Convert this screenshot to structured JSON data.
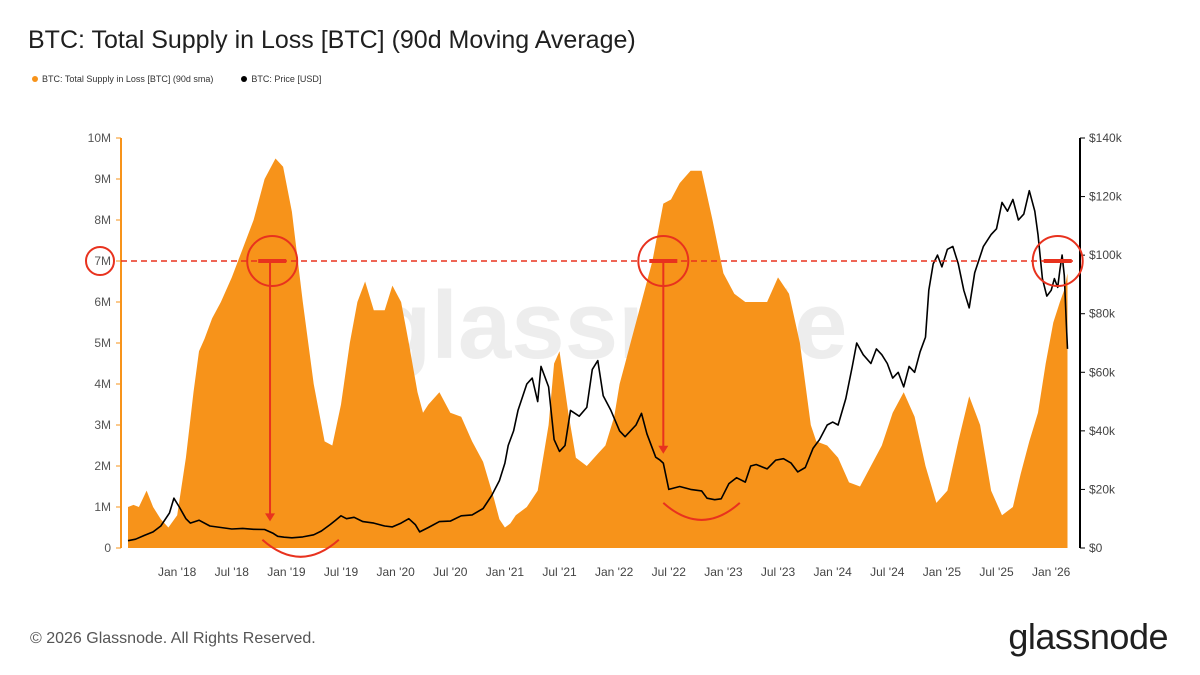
{
  "header": {
    "title": "BTC: Total Supply in Loss [BTC] (90d Moving Average)"
  },
  "footer": {
    "copyright": "© 2026 Glassnode. All Rights Reserved.",
    "brand": "glassnode"
  },
  "colors": {
    "supply": "#F7931A",
    "price": "#000000",
    "annotation": "#E8321E"
  },
  "chart_data": {
    "type": "area",
    "title": "BTC: Total Supply in Loss [BTC] (90d Moving Average)",
    "watermark": "glassnode",
    "x_range": [
      2017.55,
      2026.2
    ],
    "y_left": {
      "min": 0,
      "max": 10000000,
      "ticks": [
        0,
        1000000,
        2000000,
        3000000,
        4000000,
        5000000,
        6000000,
        7000000,
        8000000,
        9000000,
        10000000
      ],
      "tick_labels": [
        "0",
        "1M",
        "2M",
        "3M",
        "4M",
        "5M",
        "6M",
        "7M",
        "8M",
        "9M",
        "10M"
      ]
    },
    "y_right": {
      "min": 0,
      "max": 140000,
      "ticks": [
        0,
        20000,
        40000,
        60000,
        80000,
        100000,
        120000,
        140000
      ],
      "tick_labels": [
        "$0",
        "$20k",
        "$40k",
        "$60k",
        "$80k",
        "$100k",
        "$120k",
        "$140k"
      ]
    },
    "x_ticks": [
      2018.0,
      2018.5,
      2019.0,
      2019.5,
      2020.0,
      2020.5,
      2021.0,
      2021.5,
      2022.0,
      2022.5,
      2023.0,
      2023.5,
      2024.0,
      2024.5,
      2025.0,
      2025.5,
      2026.0
    ],
    "x_tick_labels": [
      "Jan '18",
      "Jul '18",
      "Jan '19",
      "Jul '19",
      "Jan '20",
      "Jul '20",
      "Jan '21",
      "Jul '21",
      "Jan '22",
      "Jul '22",
      "Jan '23",
      "Jul '23",
      "Jan '24",
      "Jul '24",
      "Jan '25",
      "Jul '25",
      "Jan '26"
    ],
    "series": [
      {
        "name": "BTC: Total Supply in Loss [BTC] (90d sma)",
        "axis": "left",
        "style": "area",
        "x": [
          2017.55,
          2017.6,
          2017.65,
          2017.72,
          2017.78,
          2017.85,
          2017.92,
          2018.0,
          2018.08,
          2018.15,
          2018.2,
          2018.25,
          2018.32,
          2018.4,
          2018.5,
          2018.6,
          2018.7,
          2018.8,
          2018.9,
          2018.97,
          2019.05,
          2019.15,
          2019.25,
          2019.35,
          2019.42,
          2019.5,
          2019.58,
          2019.65,
          2019.72,
          2019.8,
          2019.9,
          2019.97,
          2020.05,
          2020.12,
          2020.2,
          2020.25,
          2020.3,
          2020.4,
          2020.5,
          2020.6,
          2020.7,
          2020.8,
          2020.9,
          2020.95,
          2021.0,
          2021.05,
          2021.1,
          2021.2,
          2021.3,
          2021.4,
          2021.45,
          2021.5,
          2021.58,
          2021.65,
          2021.75,
          2021.85,
          2021.92,
          2022.0,
          2022.05,
          2022.1,
          2022.15,
          2022.25,
          2022.35,
          2022.45,
          2022.52,
          2022.6,
          2022.7,
          2022.8,
          2022.9,
          2023.0,
          2023.1,
          2023.2,
          2023.3,
          2023.4,
          2023.5,
          2023.6,
          2023.7,
          2023.8,
          2023.85,
          2023.95,
          2024.05,
          2024.15,
          2024.25,
          2024.35,
          2024.45,
          2024.55,
          2024.65,
          2024.75,
          2024.85,
          2024.95,
          2025.05,
          2025.15,
          2025.25,
          2025.35,
          2025.45,
          2025.55,
          2025.65,
          2025.72,
          2025.8,
          2025.88,
          2025.95,
          2026.02,
          2026.08,
          2026.12,
          2026.15
        ],
        "values": [
          1000000,
          1050000,
          1000000,
          1400000,
          1000000,
          700000,
          500000,
          800000,
          2200000,
          3800000,
          4800000,
          5100000,
          5600000,
          6000000,
          6600000,
          7300000,
          8000000,
          9000000,
          9500000,
          9300000,
          8200000,
          6000000,
          4000000,
          2600000,
          2500000,
          3500000,
          5000000,
          6000000,
          6500000,
          5800000,
          5800000,
          6400000,
          6000000,
          5000000,
          3800000,
          3300000,
          3500000,
          3800000,
          3300000,
          3200000,
          2600000,
          2100000,
          1200000,
          700000,
          500000,
          600000,
          800000,
          1000000,
          1400000,
          3000000,
          4500000,
          4800000,
          3300000,
          2200000,
          2000000,
          2300000,
          2500000,
          3200000,
          4000000,
          4500000,
          5000000,
          6000000,
          7000000,
          8400000,
          8500000,
          8900000,
          9200000,
          9200000,
          8000000,
          6700000,
          6200000,
          6000000,
          6000000,
          6000000,
          6600000,
          6200000,
          5000000,
          3000000,
          2600000,
          2500000,
          2200000,
          1600000,
          1500000,
          2000000,
          2500000,
          3300000,
          3800000,
          3200000,
          2000000,
          1100000,
          1400000,
          2600000,
          3700000,
          3000000,
          1400000,
          800000,
          1000000,
          1800000,
          2600000,
          3300000,
          4500000,
          5500000,
          6000000,
          6300000,
          6700000
        ]
      },
      {
        "name": "BTC: Price [USD]",
        "axis": "right",
        "style": "line",
        "x": [
          2017.55,
          2017.62,
          2017.7,
          2017.78,
          2017.85,
          2017.93,
          2017.97,
          2018.02,
          2018.08,
          2018.12,
          2018.2,
          2018.3,
          2018.4,
          2018.5,
          2018.6,
          2018.7,
          2018.8,
          2018.88,
          2018.92,
          2018.98,
          2019.05,
          2019.15,
          2019.25,
          2019.32,
          2019.4,
          2019.45,
          2019.5,
          2019.55,
          2019.62,
          2019.7,
          2019.8,
          2019.9,
          2019.97,
          2020.05,
          2020.12,
          2020.18,
          2020.22,
          2020.3,
          2020.4,
          2020.5,
          2020.6,
          2020.7,
          2020.8,
          2020.88,
          2020.95,
          2021.0,
          2021.03,
          2021.08,
          2021.12,
          2021.2,
          2021.25,
          2021.3,
          2021.33,
          2021.4,
          2021.45,
          2021.5,
          2021.55,
          2021.6,
          2021.68,
          2021.75,
          2021.8,
          2021.85,
          2021.9,
          2021.97,
          2022.05,
          2022.1,
          2022.2,
          2022.25,
          2022.3,
          2022.38,
          2022.42,
          2022.45,
          2022.5,
          2022.6,
          2022.7,
          2022.8,
          2022.85,
          2022.92,
          2022.98,
          2023.05,
          2023.12,
          2023.2,
          2023.25,
          2023.3,
          2023.4,
          2023.48,
          2023.55,
          2023.62,
          2023.68,
          2023.75,
          2023.82,
          2023.88,
          2023.95,
          2024.0,
          2024.05,
          2024.12,
          2024.18,
          2024.22,
          2024.28,
          2024.35,
          2024.4,
          2024.45,
          2024.5,
          2024.55,
          2024.6,
          2024.65,
          2024.7,
          2024.75,
          2024.8,
          2024.85,
          2024.88,
          2024.92,
          2024.96,
          2025.0,
          2025.05,
          2025.1,
          2025.15,
          2025.2,
          2025.25,
          2025.3,
          2025.38,
          2025.45,
          2025.5,
          2025.55,
          2025.6,
          2025.65,
          2025.7,
          2025.75,
          2025.8,
          2025.85,
          2025.88,
          2025.92,
          2025.96,
          2026.0,
          2026.03,
          2026.06,
          2026.08,
          2026.1,
          2026.12,
          2026.14,
          2026.15
        ],
        "values": [
          2500,
          3000,
          4300,
          5500,
          7500,
          12000,
          17000,
          14000,
          10000,
          8500,
          9500,
          7500,
          7000,
          6500,
          6700,
          6400,
          6300,
          5000,
          4000,
          3700,
          3500,
          3800,
          4500,
          5800,
          8000,
          9500,
          11000,
          10000,
          10500,
          9000,
          8500,
          7500,
          7200,
          8500,
          10000,
          8000,
          5500,
          7000,
          9000,
          9200,
          11000,
          11300,
          13500,
          18000,
          23000,
          29000,
          35000,
          40000,
          47000,
          56000,
          58000,
          50000,
          62000,
          55000,
          37000,
          33000,
          35000,
          47000,
          45000,
          48000,
          61000,
          64000,
          52000,
          47000,
          40000,
          38000,
          42000,
          46000,
          39000,
          31000,
          30000,
          29000,
          20000,
          21000,
          20000,
          19500,
          17000,
          16500,
          16800,
          22000,
          24000,
          22500,
          28000,
          28500,
          27000,
          30000,
          30500,
          29000,
          26000,
          27500,
          34000,
          37000,
          42000,
          43000,
          42000,
          51000,
          62000,
          70000,
          66000,
          63000,
          68000,
          66000,
          63000,
          58000,
          60000,
          55000,
          62000,
          60000,
          67000,
          72000,
          88000,
          97000,
          100000,
          96000,
          102000,
          103000,
          97000,
          88000,
          82000,
          94000,
          103000,
          107000,
          109000,
          118000,
          115000,
          119000,
          112000,
          114000,
          122000,
          115000,
          107000,
          92000,
          86000,
          88000,
          92000,
          89000,
          95000,
          100000,
          93000,
          76000,
          68000
        ]
      }
    ],
    "annotations": {
      "threshold_label": "7M",
      "threshold_value": 7000000,
      "circles": [
        [
          2018.87,
          7000000
        ],
        [
          2022.45,
          7000000
        ],
        [
          2026.06,
          7000000
        ]
      ],
      "arrows": [
        {
          "x": 2018.85,
          "from": 6950000,
          "to": 650000
        },
        {
          "x": 2022.45,
          "from": 6950000,
          "to": 2300000
        }
      ],
      "bottom_arcs": [
        {
          "x": [
            2018.78,
            2019.48
          ],
          "anchor": 200000
        },
        {
          "x": [
            2022.45,
            2023.15
          ],
          "anchor": 1100000
        }
      ]
    }
  }
}
